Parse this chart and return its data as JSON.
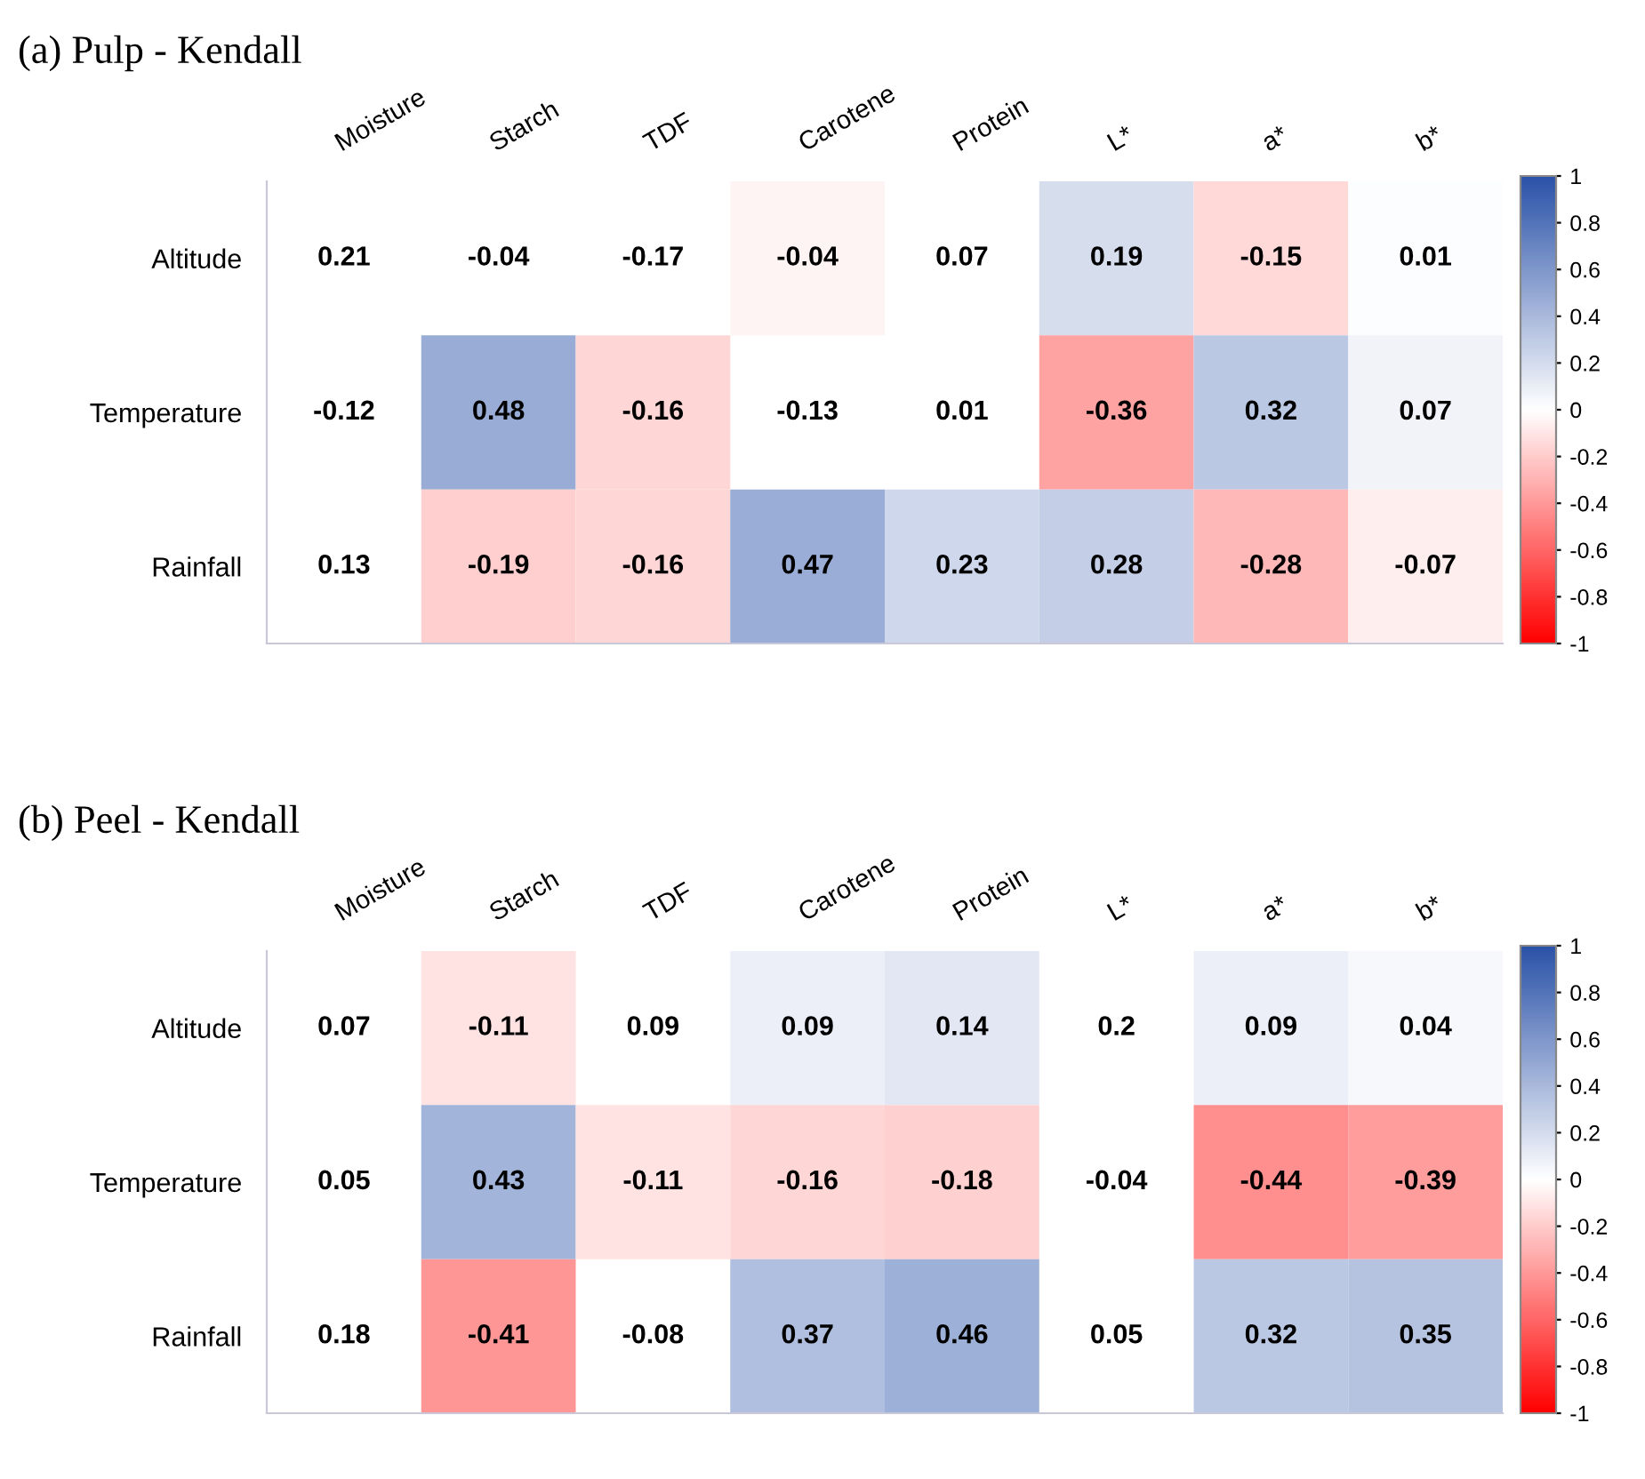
{
  "chart_data": [
    {
      "type": "heatmap",
      "title": "(a) Pulp - Kendall",
      "categories": [
        "Moisture",
        "Starch",
        "TDF",
        "Carotene",
        "Protein",
        "L*",
        "a*",
        "b*"
      ],
      "y_categories": [
        "Altitude",
        "Temperature",
        "Rainfall"
      ],
      "cells": [
        [
          null,
          null,
          null,
          -0.04,
          null,
          0.19,
          -0.15,
          0.01
        ],
        [
          null,
          0.48,
          -0.16,
          null,
          null,
          -0.36,
          0.32,
          0.07
        ],
        [
          null,
          -0.19,
          -0.16,
          0.47,
          0.23,
          0.28,
          -0.28,
          -0.07
        ]
      ],
      "cell_labels": [
        [
          "0.21",
          "-0.04",
          "-0.17",
          "-0.04",
          "0.07",
          "0.19",
          "-0.15",
          "0.01"
        ],
        [
          "-0.12",
          "0.48",
          "-0.16",
          "-0.13",
          "0.01",
          "-0.36",
          "0.32",
          "0.07"
        ],
        [
          "0.13",
          "-0.19",
          "-0.16",
          "0.47",
          "0.23",
          "0.28",
          "-0.28",
          "-0.07"
        ]
      ],
      "clim": [
        -1,
        1
      ],
      "cticks": [
        -1,
        -0.8,
        -0.6,
        -0.4,
        -0.2,
        0,
        0.2,
        0.4,
        0.6,
        0.8,
        1
      ]
    },
    {
      "type": "heatmap",
      "title": "(b) Peel - Kendall",
      "categories": [
        "Moisture",
        "Starch",
        "TDF",
        "Carotene",
        "Protein",
        "L*",
        "a*",
        "b*"
      ],
      "y_categories": [
        "Altitude",
        "Temperature",
        "Rainfall"
      ],
      "cells": [
        [
          null,
          -0.11,
          null,
          0.09,
          0.14,
          null,
          0.09,
          0.04
        ],
        [
          null,
          0.43,
          -0.11,
          -0.16,
          -0.18,
          null,
          -0.44,
          -0.39
        ],
        [
          null,
          -0.41,
          null,
          0.37,
          0.46,
          null,
          0.32,
          0.35
        ]
      ],
      "cell_labels": [
        [
          "0.07",
          "-0.11",
          "0.09",
          "0.09",
          "0.14",
          "0.2",
          "0.09",
          "0.04"
        ],
        [
          "0.05",
          "0.43",
          "-0.11",
          "-0.16",
          "-0.18",
          "-0.04",
          "-0.44",
          "-0.39"
        ],
        [
          "0.18",
          "-0.41",
          "-0.08",
          "0.37",
          "0.46",
          "0.05",
          "0.32",
          "0.35"
        ]
      ],
      "clim": [
        -1,
        1
      ],
      "cticks": [
        -1,
        -0.8,
        -0.6,
        -0.4,
        -0.2,
        0,
        0.2,
        0.4,
        0.6,
        0.8,
        1
      ]
    }
  ]
}
